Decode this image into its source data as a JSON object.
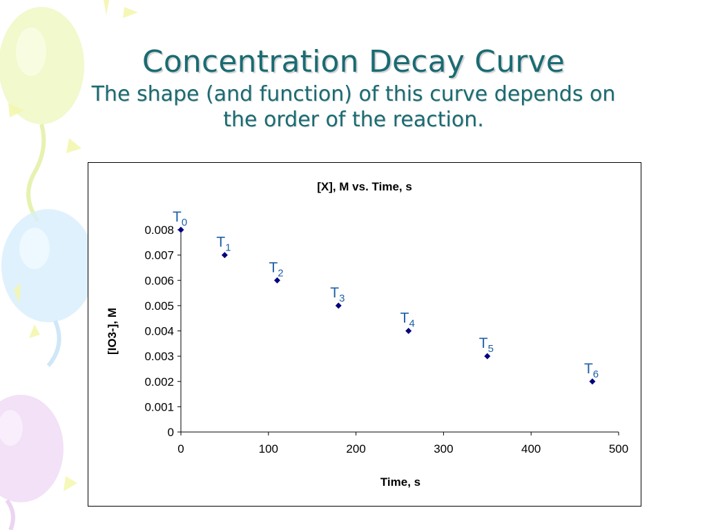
{
  "slide": {
    "title": "Concentration Decay Curve",
    "subtitle_line1": "The shape (and function) of this curve depends on",
    "subtitle_line2": "the order of the reaction."
  },
  "colors": {
    "title": "#1a6b72",
    "marker": "#000080",
    "point_label": "#1f5fa6"
  },
  "chart_data": {
    "type": "scatter",
    "title": "[X], M vs. Time, s",
    "xlabel": "Time, s",
    "ylabel": "[IO3-], M",
    "xlim": [
      0,
      500
    ],
    "ylim": [
      0,
      0.008
    ],
    "x_ticks": [
      "0",
      "100",
      "200",
      "300",
      "400",
      "500"
    ],
    "y_ticks": [
      "0",
      "0.001",
      "0.002",
      "0.003",
      "0.004",
      "0.005",
      "0.006",
      "0.007",
      "0.008"
    ],
    "grid": false,
    "series": [
      {
        "name": "[X]",
        "points": [
          {
            "x": 0,
            "y": 0.008,
            "label": "T",
            "sub": "0"
          },
          {
            "x": 50,
            "y": 0.007,
            "label": "T",
            "sub": "1"
          },
          {
            "x": 110,
            "y": 0.006,
            "label": "T",
            "sub": "2"
          },
          {
            "x": 180,
            "y": 0.005,
            "label": "T",
            "sub": "3"
          },
          {
            "x": 260,
            "y": 0.004,
            "label": "T",
            "sub": "4"
          },
          {
            "x": 350,
            "y": 0.003,
            "label": "T",
            "sub": "5"
          },
          {
            "x": 470,
            "y": 0.002,
            "label": "T",
            "sub": "6"
          }
        ]
      }
    ]
  }
}
